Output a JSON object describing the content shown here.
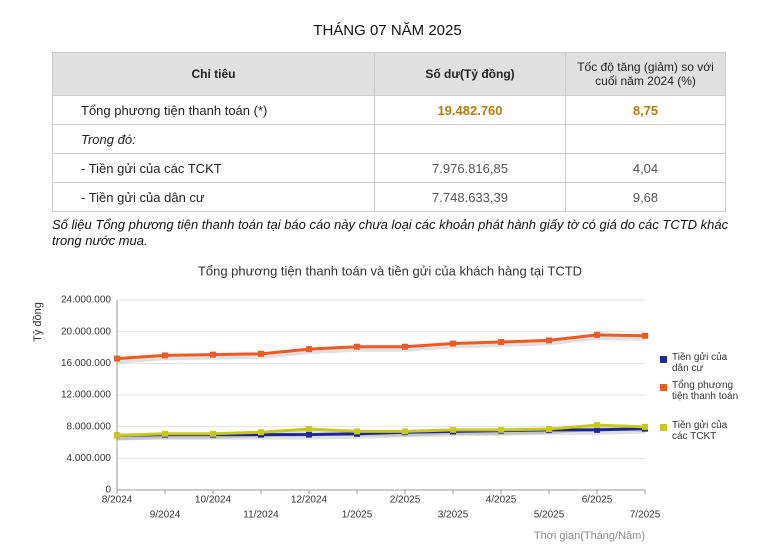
{
  "header": {
    "title": "THÁNG 07 NĂM 2025"
  },
  "table": {
    "columns": [
      "Chỉ tiêu",
      "Số dư(Tỷ đồng)",
      "Tốc độ tăng (giảm) so với cuối năm 2024 (%)"
    ],
    "rows": [
      [
        "Tổng phương tiện thanh toán (*)",
        "19.482.760",
        "8,75"
      ],
      [
        "Trong đó:",
        "",
        ""
      ],
      [
        "- Tiền gửi của các TCKT",
        "7.976.816,85",
        "4,04"
      ],
      [
        "- Tiền gửi của dân cư",
        "7.748.633,39",
        "9,68"
      ]
    ]
  },
  "note": "Số liệu Tổng phương tiện thanh toán tại báo cáo này chưa loại các khoản phát hành giấy tờ có giá do các TCTD khác trong nước mua.",
  "chart_data": {
    "type": "line",
    "title": "Tổng phương tiện thanh toán và tiền gửi của khách hàng tại TCTD",
    "y_label": "Tỷ đồng",
    "x_label": "Thời gian(Tháng/Năm)",
    "categories": [
      "8/2024",
      "9/2024",
      "10/2024",
      "11/2024",
      "12/2024",
      "1/2025",
      "2/2025",
      "3/2025",
      "4/2025",
      "5/2025",
      "6/2025",
      "7/2025"
    ],
    "series": [
      {
        "name": "Tiền gửi của dân cư",
        "color": "#1f2aa8",
        "values": [
          6900000,
          7000000,
          7000000,
          7000000,
          7000000,
          7100000,
          7300000,
          7400000,
          7500000,
          7600000,
          7600000,
          7750000
        ]
      },
      {
        "name": "Tổng phương tiện thanh toán",
        "color": "#f05a22",
        "values": [
          16600000,
          17000000,
          17100000,
          17200000,
          17800000,
          18100000,
          18100000,
          18500000,
          18700000,
          18900000,
          19600000,
          19480000
        ]
      },
      {
        "name": "Tiền gửi của các TCKT",
        "color": "#c9c91a",
        "values": [
          6900000,
          7100000,
          7100000,
          7300000,
          7700000,
          7400000,
          7400000,
          7600000,
          7600000,
          7700000,
          8200000,
          7980000
        ]
      }
    ],
    "ylim": [
      0,
      24000000
    ],
    "yticks": [
      {
        "value": 0,
        "label": "0"
      },
      {
        "value": 4000000,
        "label": "4.000.000"
      },
      {
        "value": 8000000,
        "label": "8.000.000"
      },
      {
        "value": 12000000,
        "label": "12.000.000"
      },
      {
        "value": 16000000,
        "label": "16.000.000"
      },
      {
        "value": 20000000,
        "label": "20.000.000"
      },
      {
        "value": 24000000,
        "label": "24.000.000"
      }
    ],
    "grid": true,
    "legend": "right"
  }
}
